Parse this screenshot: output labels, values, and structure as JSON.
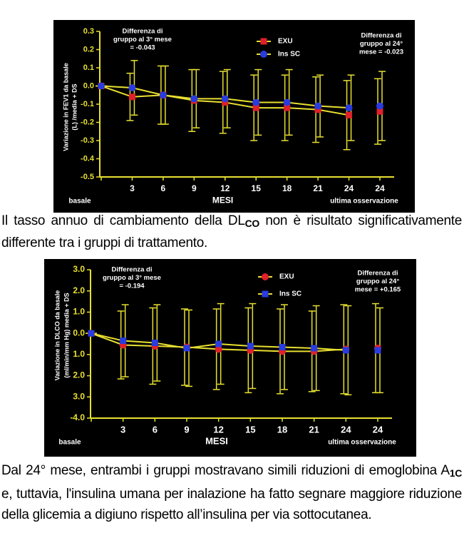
{
  "chart_data": [
    {
      "type": "line",
      "ylabel": [
        "Variazione in FEV1 da basale",
        "(L) /media + DS"
      ],
      "xlabel": "MESI",
      "categories": [
        "basale",
        "3",
        "6",
        "9",
        "12",
        "15",
        "18",
        "21",
        "24",
        "24"
      ],
      "x_note": "ultima osservazione",
      "ylim": [
        -0.5,
        0.3
      ],
      "yticks": [
        0.3,
        0.2,
        0.1,
        {
          "value": 0,
          "label": "0.0"
        },
        -0.1,
        -0.2,
        -0.3,
        -0.4,
        -0.5
      ],
      "annotations": [
        [
          "Differenza di",
          "gruppo al 3° mese",
          "= -0.043"
        ],
        [
          "Differenza di",
          "gruppo al 24°",
          "mese = -0.023"
        ]
      ],
      "series": [
        {
          "name": "EXU",
          "color": "#e0202a",
          "marker": "square",
          "values": [
            0,
            -0.06,
            -0.05,
            -0.08,
            -0.09,
            -0.12,
            -0.12,
            -0.13,
            -0.16,
            -0.14
          ],
          "errors": [
            0,
            0.13,
            0.16,
            0.17,
            0.17,
            0.18,
            0.18,
            0.18,
            0.19,
            0.18
          ]
        },
        {
          "name": "Ins SC",
          "color": "#2a3ce0",
          "marker": "circle",
          "values": [
            0,
            -0.01,
            -0.05,
            -0.07,
            -0.07,
            -0.09,
            -0.09,
            -0.11,
            -0.12,
            -0.11
          ],
          "errors": [
            0,
            0.15,
            0.16,
            0.16,
            0.16,
            0.18,
            0.18,
            0.17,
            0.18,
            0.19
          ]
        }
      ]
    },
    {
      "type": "line",
      "ylabel": [
        "Variazione in DLCO da basale",
        "(ml/min/mm Hg) media + DS"
      ],
      "xlabel": "MESI",
      "categories": [
        "basale",
        "3",
        "6",
        "9",
        "12",
        "15",
        "18",
        "21",
        "24",
        "24"
      ],
      "x_note": "ultima osservazione",
      "ylim": [
        -4,
        3
      ],
      "yticks": [
        {
          "value": 3,
          "label": "3.0"
        },
        {
          "value": 2,
          "label": "2.0"
        },
        {
          "value": 1,
          "label": "1.0"
        },
        {
          "value": 0,
          "label": "0.0"
        },
        {
          "value": -1,
          "label": "1.0"
        },
        {
          "value": -2,
          "label": "2.0"
        },
        {
          "value": -3,
          "label": "3.0"
        },
        {
          "value": -4,
          "label": "-4.0"
        }
      ],
      "annotations": [
        [
          "Differenza di",
          "gruppo al 3° mese",
          "= -0.194"
        ],
        [
          "Differenza di",
          "gruppo al 24°",
          "mese = +0.165"
        ]
      ],
      "series": [
        {
          "name": "EXU",
          "color": "#e0202a",
          "marker": "circle",
          "values": [
            0,
            -0.55,
            -0.6,
            -0.65,
            -0.75,
            -0.8,
            -0.85,
            -0.85,
            -0.75,
            -0.7
          ],
          "errors": [
            0,
            1.6,
            1.8,
            1.8,
            1.9,
            2.0,
            2.0,
            1.9,
            2.1,
            2.1
          ]
        },
        {
          "name": "Ins SC",
          "color": "#2a3ce0",
          "marker": "square",
          "values": [
            0,
            -0.35,
            -0.45,
            -0.7,
            -0.5,
            -0.6,
            -0.65,
            -0.7,
            -0.8,
            -0.8
          ],
          "errors": [
            0,
            1.7,
            1.8,
            1.8,
            1.9,
            2.0,
            2.0,
            2.0,
            2.1,
            2.0
          ]
        }
      ]
    }
  ],
  "paragraphs": [
    [
      "Il tasso annuo di cambiamento della DL",
      "CO",
      " non è risultato significativamente differente tra i gruppi di trattamento."
    ],
    [
      "Dal 24° mese, entrambi i gruppi mostravano simili riduzioni di emoglobina A",
      "1C",
      " e, tuttavia, l'insulina umana per inalazione ha fatto segnare maggiore riduzione della glicemia a digiuno rispetto all’insulina per via sottocutanea."
    ]
  ]
}
